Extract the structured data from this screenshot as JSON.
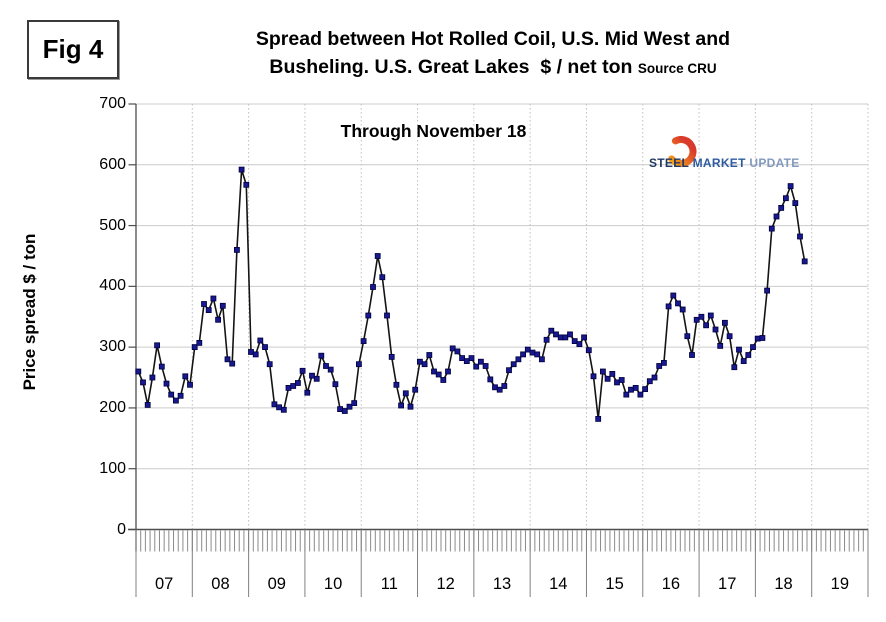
{
  "figure": {
    "label": "Fig 4"
  },
  "title": {
    "line1": "Spread between Hot Rolled Coil, U.S. Mid West and",
    "line2": "Busheling. U.S. Great Lakes  $ / net ton ",
    "source": "Source CRU"
  },
  "annotation": {
    "text": "Through November 18"
  },
  "logo": {
    "word1": "STEEL",
    "word2": " MARKET",
    "word3": " UPDATE",
    "word1_color": "#1f3864",
    "word2_color": "#2e5b9f",
    "word3_color": "#8199be",
    "crescent_color_top": "#f7a21b",
    "crescent_color_bottom": "#d93a2b"
  },
  "y_axis": {
    "label": "Price spread $ / ton"
  },
  "chart_data": {
    "type": "line",
    "title": "Spread between Hot Rolled Coil, U.S. Mid West and Busheling. U.S. Great Lakes $ / net ton",
    "source": "Source CRU",
    "annotation": "Through November 18",
    "ylabel": "Price spread $ / ton",
    "ylim": [
      0,
      700
    ],
    "y_ticks": [
      0,
      100,
      200,
      300,
      400,
      500,
      600,
      700
    ],
    "x_year_labels": [
      "07",
      "08",
      "09",
      "10",
      "11",
      "12",
      "13",
      "14",
      "15",
      "16",
      "17",
      "18",
      "19"
    ],
    "frequency": "monthly",
    "start": "2007-01",
    "end": "2018-11",
    "grid": "horizontal solid gray, vertical dotted at year boundaries",
    "legend_position": "none",
    "line_color": "#141414",
    "marker": {
      "shape": "square",
      "fill": "#18188f",
      "stroke": "#00003c"
    },
    "series": [
      {
        "name": "HRC U.S. Midwest minus Busheling U.S. Great Lakes spread ($/net ton)",
        "values": [
          260,
          242,
          205,
          250,
          303,
          268,
          240,
          222,
          212,
          220,
          252,
          238,
          300,
          307,
          371,
          361,
          380,
          345,
          368,
          280,
          273,
          460,
          592,
          567,
          292,
          288,
          311,
          300,
          272,
          206,
          201,
          197,
          233,
          236,
          241,
          261,
          225,
          253,
          248,
          286,
          269,
          263,
          239,
          198,
          195,
          202,
          208,
          272,
          310,
          352,
          399,
          450,
          415,
          352,
          284,
          238,
          204,
          224,
          202,
          230,
          276,
          272,
          287,
          260,
          255,
          246,
          260,
          298,
          293,
          282,
          277,
          282,
          268,
          276,
          269,
          247,
          234,
          230,
          236,
          262,
          272,
          280,
          288,
          296,
          291,
          288,
          280,
          312,
          327,
          321,
          316,
          316,
          321,
          310,
          305,
          316,
          295,
          252,
          182,
          260,
          248,
          256,
          242,
          246,
          222,
          230,
          233,
          222,
          231,
          244,
          250,
          269,
          274,
          367,
          385,
          372,
          362,
          318,
          287,
          345,
          350,
          336,
          352,
          329,
          302,
          340,
          318,
          267,
          296,
          277,
          287,
          300,
          314,
          315,
          393,
          495,
          515,
          529,
          545,
          565,
          537,
          482,
          441
        ]
      }
    ]
  }
}
